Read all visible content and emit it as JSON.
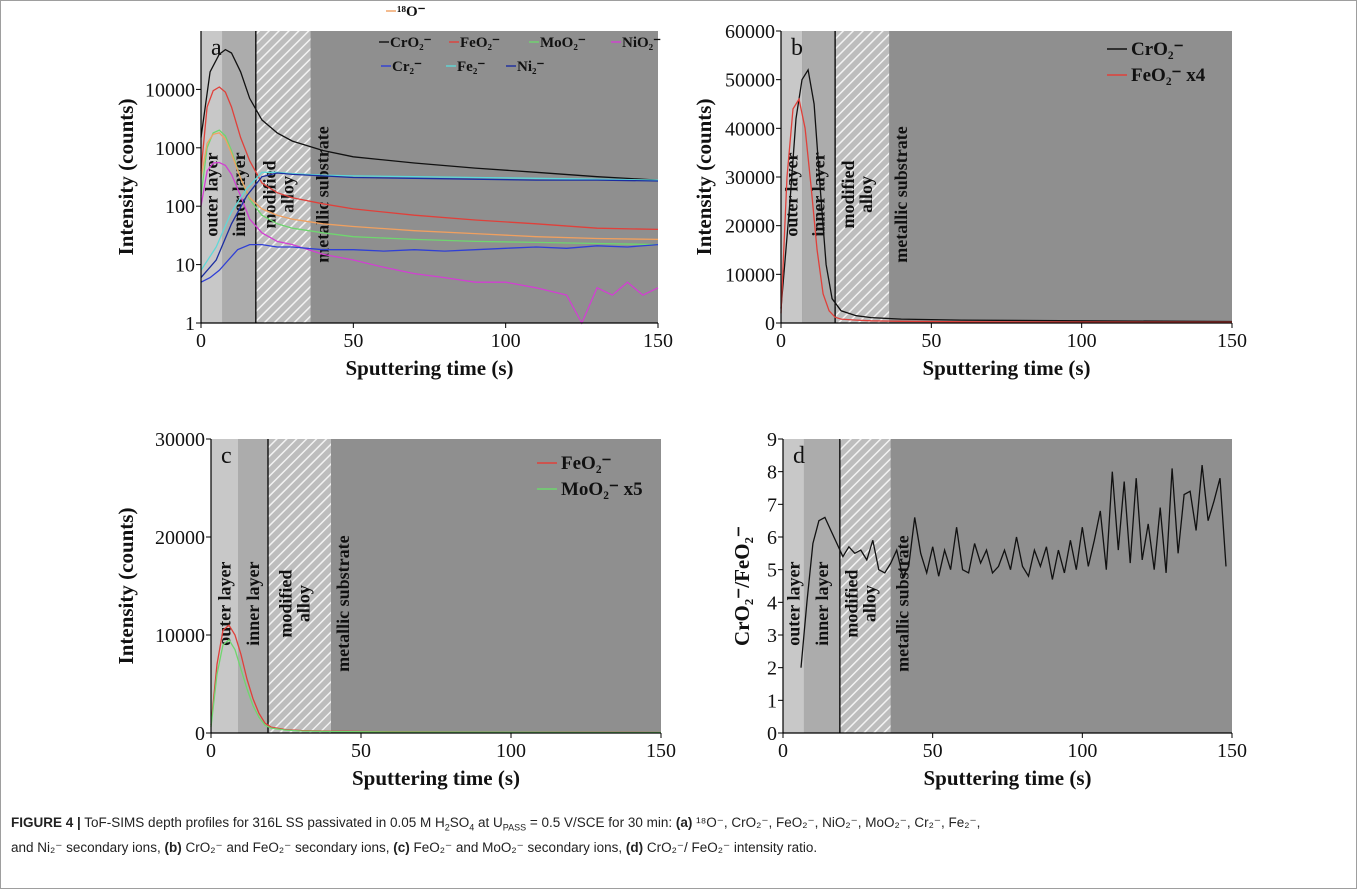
{
  "figure": {
    "caption": {
      "label": "FIGURE 4 |",
      "text_1": " ToF-SIMS depth profiles for 316L SS passivated in 0.05 M H",
      "sub_2": "2",
      "text_2": "SO",
      "sub_4": "4",
      "text_3": " at U",
      "sub_pass": "PASS",
      "text_4": " = 0.5 V/SCE for 30 min: ",
      "a": "(a)",
      "a_text": " ¹⁸O⁻, CrO₂⁻, FeO₂⁻, NiO₂⁻, MoO₂⁻, Cr₂⁻, Fe₂⁻,",
      "line2_start": "and Ni₂⁻ secondary ions, ",
      "b": "(b)",
      "b_text": " CrO₂⁻ and FeO₂⁻ secondary ions, ",
      "c": "(c)",
      "c_text": " FeO₂⁻ and MoO₂⁻ secondary ions, ",
      "d": "(d)",
      "d_text": " CrO₂⁻/ FeO₂⁻ intensity ratio."
    },
    "colors": {
      "background_plot": "#8f8f8f",
      "outer_layer": "#c8c8c8",
      "inner_layer": "#acacac",
      "hatch": "#d8d8d8"
    }
  },
  "chart_data": [
    {
      "panel": "a",
      "type": "line",
      "scale_y": "log",
      "xlabel": "Sputtering time (s)",
      "ylabel": "Intensity (counts)",
      "xlim": [
        0,
        150
      ],
      "ylim": [
        1,
        100000
      ],
      "xticks": [
        "0",
        "50",
        "100",
        "150"
      ],
      "yticks": [
        "1",
        "10",
        "100",
        "1000",
        "10000"
      ],
      "regions": [
        {
          "label": "outer layer",
          "from": 0,
          "to": 7
        },
        {
          "label": "inner layer",
          "from": 7,
          "to": 18
        },
        {
          "label": "modified alloy",
          "from": 18,
          "to": 36
        },
        {
          "label": "metallic substrate",
          "from": 36,
          "to": 150
        }
      ],
      "legend": [
        "¹⁸O⁻",
        "CrO₂⁻",
        "FeO₂⁻",
        "MoO₂⁻",
        "NiO₂⁻",
        "Cr₂⁻",
        "Fe₂⁻",
        "Ni₂⁻"
      ],
      "series": [
        {
          "name": "CrO₂⁻",
          "color": "#111111",
          "x": [
            0,
            3,
            6,
            8,
            10,
            13,
            16,
            20,
            25,
            30,
            40,
            50,
            70,
            90,
            110,
            130,
            150
          ],
          "y": [
            1500,
            20000,
            40000,
            48000,
            42000,
            20000,
            7000,
            3000,
            1800,
            1300,
            900,
            700,
            550,
            450,
            380,
            320,
            280
          ]
        },
        {
          "name": "FeO₂⁻",
          "color": "#e0403a",
          "x": [
            0,
            2,
            4,
            6,
            8,
            10,
            13,
            16,
            20,
            25,
            30,
            40,
            50,
            70,
            90,
            110,
            130,
            150
          ],
          "y": [
            400,
            5000,
            9500,
            11000,
            9000,
            5000,
            1500,
            600,
            250,
            170,
            140,
            110,
            90,
            70,
            58,
            50,
            42,
            40
          ]
        },
        {
          "name": "MoO₂⁻",
          "color": "#6fd66f",
          "x": [
            0,
            2,
            4,
            6,
            8,
            10,
            13,
            16,
            20,
            25,
            30,
            40,
            50,
            70,
            90,
            110,
            130,
            150
          ],
          "y": [
            150,
            1000,
            1800,
            2000,
            1600,
            900,
            300,
            130,
            70,
            50,
            42,
            35,
            30,
            27,
            25,
            24,
            23,
            22
          ]
        },
        {
          "name": "¹⁸O⁻",
          "color": "#f0a060",
          "x": [
            0,
            2,
            4,
            6,
            8,
            10,
            13,
            16,
            20,
            25,
            30,
            40,
            50,
            70,
            90,
            110,
            130,
            150
          ],
          "y": [
            300,
            1200,
            1700,
            1800,
            1400,
            800,
            300,
            140,
            90,
            70,
            60,
            50,
            45,
            38,
            34,
            30,
            28,
            27
          ]
        },
        {
          "name": "NiO₂⁻",
          "color": "#d23fd2",
          "x": [
            0,
            2,
            4,
            6,
            8,
            10,
            13,
            16,
            20,
            25,
            30,
            40,
            50,
            60,
            70,
            80,
            90,
            100,
            110,
            120,
            125,
            130,
            135,
            140,
            145,
            150
          ],
          "y": [
            100,
            400,
            550,
            560,
            500,
            350,
            150,
            60,
            35,
            25,
            22,
            15,
            12,
            9,
            7,
            6,
            5,
            5,
            4,
            3,
            1,
            4,
            3,
            5,
            3,
            4
          ]
        },
        {
          "name": "Cr₂⁻",
          "color": "#2f3fd6",
          "x": [
            0,
            3,
            6,
            9,
            12,
            16,
            20,
            25,
            30,
            40,
            50,
            60,
            70,
            80,
            90,
            100,
            110,
            120,
            130,
            140,
            150
          ],
          "y": [
            5,
            6,
            8,
            12,
            18,
            22,
            22,
            20,
            20,
            18,
            18,
            17,
            18,
            17,
            18,
            19,
            20,
            19,
            21,
            20,
            22
          ]
        },
        {
          "name": "Fe₂⁻",
          "color": "#5fd8d8",
          "x": [
            0,
            5,
            10,
            15,
            20,
            25,
            30,
            40,
            50,
            70,
            90,
            110,
            130,
            150
          ],
          "y": [
            8,
            20,
            80,
            200,
            380,
            380,
            360,
            340,
            330,
            320,
            310,
            300,
            290,
            280
          ]
        },
        {
          "name": "Ni₂⁻",
          "color": "#1b2da0",
          "x": [
            0,
            5,
            10,
            15,
            20,
            25,
            30,
            40,
            50,
            70,
            90,
            110,
            130,
            150
          ],
          "y": [
            6,
            12,
            50,
            150,
            320,
            370,
            350,
            330,
            310,
            300,
            290,
            280,
            280,
            270
          ]
        }
      ]
    },
    {
      "panel": "b",
      "type": "line",
      "xlabel": "Sputtering time (s)",
      "ylabel": "Intensity (counts)",
      "xlim": [
        0,
        150
      ],
      "ylim": [
        0,
        60000
      ],
      "xticks": [
        "0",
        "50",
        "100",
        "150"
      ],
      "yticks": [
        "0",
        "10000",
        "20000",
        "30000",
        "40000",
        "50000",
        "60000"
      ],
      "regions": [
        {
          "label": "outer layer",
          "from": 0,
          "to": 7
        },
        {
          "label": "inner layer",
          "from": 7,
          "to": 18
        },
        {
          "label": "modified alloy",
          "from": 18,
          "to": 36
        },
        {
          "label": "metallic substrate",
          "from": 36,
          "to": 150
        }
      ],
      "legend": [
        "CrO₂⁻",
        "FeO₂⁻ x4"
      ],
      "series": [
        {
          "name": "CrO₂⁻",
          "color": "#111111",
          "x": [
            0,
            3,
            5,
            7,
            9,
            11,
            13,
            15,
            17,
            20,
            25,
            30,
            40,
            60,
            100,
            150
          ],
          "y": [
            3000,
            25000,
            42000,
            50000,
            52000,
            45000,
            28000,
            12000,
            5000,
            2500,
            1500,
            1100,
            800,
            600,
            450,
            300
          ]
        },
        {
          "name": "FeO₂⁻ x4",
          "color": "#e0403a",
          "x": [
            0,
            2,
            4,
            6,
            8,
            10,
            12,
            14,
            16,
            18,
            20,
            25,
            30,
            40,
            60,
            100,
            150
          ],
          "y": [
            2000,
            30000,
            44000,
            46000,
            40000,
            28000,
            15000,
            6000,
            2500,
            1200,
            800,
            600,
            450,
            350,
            250,
            200,
            150
          ]
        }
      ]
    },
    {
      "panel": "c",
      "type": "line",
      "xlabel": "Sputtering time (s)",
      "ylabel": "Intensity (counts)",
      "xlim": [
        0,
        150
      ],
      "ylim": [
        0,
        30000
      ],
      "xticks": [
        "0",
        "50",
        "100",
        "150"
      ],
      "yticks": [
        "0",
        "10000",
        "20000",
        "30000"
      ],
      "regions": [
        {
          "label": "outer layer",
          "from": 0,
          "to": 9
        },
        {
          "label": "inner layer",
          "from": 9,
          "to": 19
        },
        {
          "label": "modified alloy",
          "from": 19,
          "to": 40
        },
        {
          "label": "metallic substrate",
          "from": 40,
          "to": 150
        }
      ],
      "legend": [
        "FeO₂⁻",
        "MoO₂⁻ x5"
      ],
      "series": [
        {
          "name": "FeO₂⁻",
          "color": "#e0403a",
          "x": [
            0,
            2,
            4,
            6,
            8,
            10,
            12,
            14,
            16,
            18,
            20,
            25,
            30,
            40,
            60,
            100,
            150
          ],
          "y": [
            800,
            7000,
            10500,
            11000,
            10000,
            8000,
            5500,
            3500,
            2000,
            1000,
            600,
            350,
            250,
            180,
            120,
            80,
            50
          ]
        },
        {
          "name": "MoO₂⁻ x5",
          "color": "#6fd66f",
          "x": [
            0,
            2,
            4,
            6,
            8,
            10,
            12,
            14,
            16,
            18,
            20,
            25,
            30,
            40,
            60,
            100,
            150
          ],
          "y": [
            600,
            6000,
            9000,
            9500,
            8500,
            6500,
            4500,
            2800,
            1600,
            800,
            500,
            300,
            200,
            150,
            100,
            70,
            50
          ]
        }
      ]
    },
    {
      "panel": "d",
      "type": "line",
      "xlabel": "Sputtering time (s)",
      "ylabel": "CrO₂⁻/FeO₂⁻",
      "xlim": [
        0,
        150
      ],
      "ylim": [
        0,
        9
      ],
      "xticks": [
        "0",
        "50",
        "100",
        "150"
      ],
      "yticks": [
        "0",
        "1",
        "2",
        "3",
        "4",
        "5",
        "6",
        "7",
        "8",
        "9"
      ],
      "regions": [
        {
          "label": "outer layer",
          "from": 0,
          "to": 7
        },
        {
          "label": "inner layer",
          "from": 7,
          "to": 19
        },
        {
          "label": "modified alloy",
          "from": 19,
          "to": 36
        },
        {
          "label": "metallic substrate",
          "from": 36,
          "to": 150
        }
      ],
      "series": [
        {
          "name": "",
          "color": "#111111",
          "x": [
            6,
            8,
            10,
            12,
            14,
            16,
            18,
            20,
            22,
            24,
            26,
            28,
            30,
            32,
            34,
            36,
            38,
            40,
            42,
            44,
            46,
            48,
            50,
            52,
            54,
            56,
            58,
            60,
            62,
            64,
            66,
            68,
            70,
            72,
            74,
            76,
            78,
            80,
            82,
            84,
            86,
            88,
            90,
            92,
            94,
            96,
            98,
            100,
            102,
            104,
            106,
            108,
            110,
            112,
            114,
            116,
            118,
            120,
            122,
            124,
            126,
            128,
            130,
            132,
            134,
            136,
            138,
            140,
            142,
            144,
            146,
            148
          ],
          "y": [
            2.0,
            4.0,
            5.8,
            6.5,
            6.6,
            6.2,
            5.8,
            5.4,
            5.7,
            5.5,
            5.6,
            5.3,
            5.9,
            5.0,
            4.9,
            5.2,
            5.6,
            4.8,
            5.1,
            6.6,
            5.5,
            4.9,
            5.7,
            4.8,
            5.6,
            5.0,
            6.3,
            5.0,
            4.9,
            5.8,
            5.2,
            5.6,
            4.9,
            5.1,
            5.6,
            5.0,
            6.0,
            5.1,
            4.8,
            5.6,
            5.1,
            5.7,
            4.7,
            5.6,
            4.9,
            5.9,
            5.0,
            6.3,
            5.1,
            5.9,
            6.8,
            5.0,
            8.0,
            5.6,
            7.7,
            5.2,
            7.8,
            5.3,
            6.4,
            5.0,
            6.9,
            4.9,
            8.1,
            5.5,
            7.3,
            7.4,
            6.2,
            8.2,
            6.5,
            7.1,
            7.8,
            5.1
          ]
        }
      ]
    }
  ]
}
